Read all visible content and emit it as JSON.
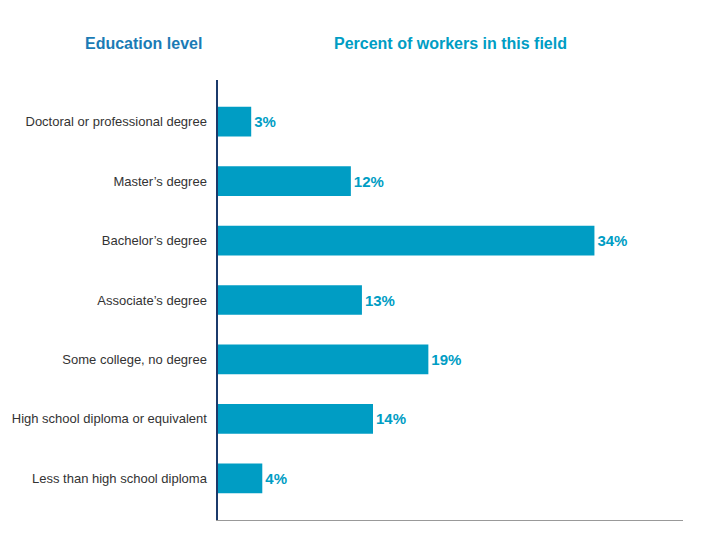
{
  "chart_data": {
    "type": "bar",
    "orientation": "horizontal",
    "annotations": [
      "Education level",
      "Percent of workers in this field"
    ],
    "categories": [
      "Doctoral or professional degree",
      "Master’s degree",
      "Bachelor’s degree",
      "Associate’s degree",
      "Some college, no degree",
      "High school diploma or equivalent",
      "Less than high school diploma"
    ],
    "values": [
      3,
      12,
      34,
      13,
      19,
      14,
      4
    ],
    "value_labels": [
      "3%",
      "12%",
      "34%",
      "13%",
      "19%",
      "14%",
      "4%"
    ],
    "data_labels": true,
    "color": "#009DC4",
    "xlim": [
      0,
      42
    ],
    "tick_labels": "y",
    "grid": false
  }
}
